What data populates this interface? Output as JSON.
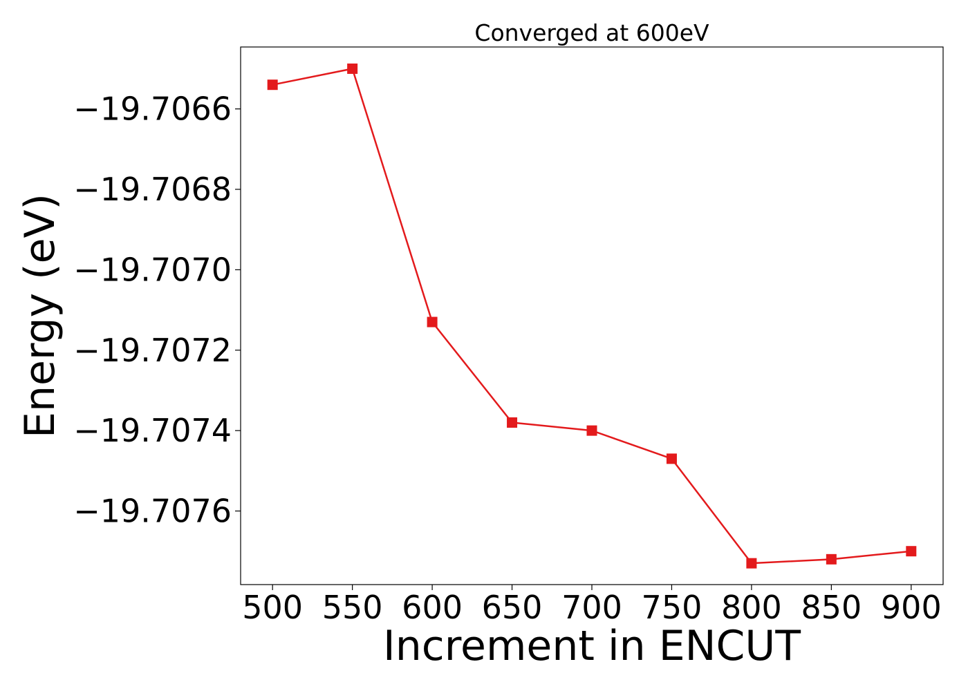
{
  "chart_data": {
    "type": "line",
    "title": "Converged at 600eV",
    "xlabel": "Increment in ENCUT",
    "ylabel": "Energy (eV)",
    "x": [
      500,
      550,
      600,
      650,
      700,
      750,
      800,
      850,
      900
    ],
    "series": [
      {
        "values": [
          -19.70654,
          -19.7065,
          -19.70713,
          -19.70738,
          -19.7074,
          -19.70747,
          -19.70773,
          -19.70772,
          -19.7077
        ],
        "color": "#e31a1c",
        "marker": "square"
      }
    ],
    "xlim": [
      480,
      920
    ],
    "ylim": [
      -19.707783,
      -19.706446
    ],
    "xticks": [
      500,
      550,
      600,
      650,
      700,
      750,
      800,
      850,
      900
    ],
    "xtick_labels": [
      "500",
      "550",
      "600",
      "650",
      "700",
      "750",
      "800",
      "850",
      "900"
    ],
    "yticks": [
      -19.7066,
      -19.7068,
      -19.707,
      -19.7072,
      -19.7074,
      -19.7076
    ],
    "ytick_labels": [
      "−19.7066",
      "−19.7068",
      "−19.7070",
      "−19.7072",
      "−19.7074",
      "−19.7076"
    ],
    "grid": false,
    "legend": "none"
  }
}
